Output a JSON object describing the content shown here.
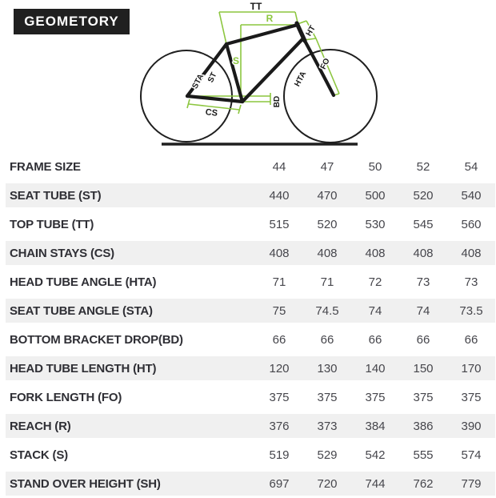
{
  "header": {
    "title": "GEOMETORY"
  },
  "diagram": {
    "labels": {
      "tt": "TT",
      "r": "R",
      "ht": "HT",
      "s": "S",
      "sta": "STA",
      "st": "ST",
      "cs": "CS",
      "bd": "BD",
      "hta": "HTA",
      "fo": "FO"
    },
    "colors": {
      "green": "#8CC63F",
      "frame": "#1A1A1A"
    }
  },
  "chart_data": {
    "type": "table",
    "title": "GEOMETORY",
    "columns": [
      "44",
      "47",
      "50",
      "52",
      "54"
    ],
    "rows": [
      {
        "label": "FRAME SIZE",
        "values": [
          "44",
          "47",
          "50",
          "52",
          "54"
        ]
      },
      {
        "label": "SEAT TUBE (ST)",
        "values": [
          "440",
          "470",
          "500",
          "520",
          "540"
        ]
      },
      {
        "label": "TOP TUBE (TT)",
        "values": [
          "515",
          "520",
          "530",
          "545",
          "560"
        ]
      },
      {
        "label": "CHAIN STAYS (CS)",
        "values": [
          "408",
          "408",
          "408",
          "408",
          "408"
        ]
      },
      {
        "label": "HEAD TUBE ANGLE (HTA)",
        "values": [
          "71",
          "71",
          "72",
          "73",
          "73"
        ]
      },
      {
        "label": "SEAT TUBE ANGLE (STA)",
        "values": [
          "75",
          "74.5",
          "74",
          "74",
          "73.5"
        ]
      },
      {
        "label": "BOTTOM BRACKET DROP(BD)",
        "values": [
          "66",
          "66",
          "66",
          "66",
          "66"
        ]
      },
      {
        "label": "HEAD TUBE LENGTH (HT)",
        "values": [
          "120",
          "130",
          "140",
          "150",
          "170"
        ]
      },
      {
        "label": "FORK LENGTH (FO)",
        "values": [
          "375",
          "375",
          "375",
          "375",
          "375"
        ]
      },
      {
        "label": "REACH (R)",
        "values": [
          "376",
          "373",
          "384",
          "386",
          "390"
        ]
      },
      {
        "label": "STACK (S)",
        "values": [
          "519",
          "529",
          "542",
          "555",
          "574"
        ]
      },
      {
        "label": "STAND OVER HEIGHT (SH)",
        "values": [
          "697",
          "720",
          "744",
          "762",
          "779"
        ]
      }
    ],
    "layout": {
      "row_stripe_color": "#F0F0F0",
      "label_color": "#2F2F35",
      "value_color": "#46464C",
      "legend": "bike frame diagram with dimension labels"
    }
  }
}
